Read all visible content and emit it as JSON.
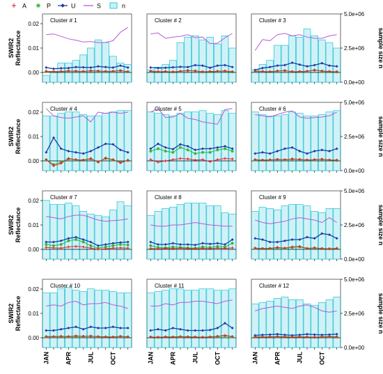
{
  "chart_data": {
    "type": "bar+line",
    "legend": {
      "placement": "top",
      "entries": [
        {
          "label": "A",
          "color": "#e8202a",
          "marker": "plus"
        },
        {
          "label": "P",
          "color": "#2fb82f",
          "marker": "star"
        },
        {
          "label": "U",
          "color": "#1f3aa8",
          "marker": "diamond"
        },
        {
          "label": "S",
          "color": "#b45ad6",
          "marker": "line"
        },
        {
          "label": "n",
          "color": "#36c8d8",
          "marker": "box"
        }
      ]
    },
    "y_left_label": "SWIR2 Reflectance",
    "y_right_label": "sample size n",
    "y_left_ticks": [
      "0.00",
      "0.01",
      "0.02"
    ],
    "y_right_ticks": [
      "0.0e+00",
      "2.5e+06",
      "5.0e+06"
    ],
    "y_left_range": [
      -0.004,
      0.024
    ],
    "y_right_range": [
      0,
      5000000
    ],
    "x_tick_labels": [
      "JAN",
      "APR",
      "JUL",
      "OCT"
    ],
    "grid": false,
    "panels": [
      {
        "title": "Cluster # 1",
        "n": [
          500000,
          800000,
          1400000,
          1400000,
          1600000,
          2000000,
          2500000,
          3100000,
          2900000,
          1900000,
          1400000,
          1300000
        ],
        "A": [
          0.0005,
          0.0003,
          0.0004,
          0.0006,
          0.0005,
          0.0004,
          0.0007,
          0.0006,
          0.0004,
          0.0005,
          0.0008,
          0.0003
        ],
        "P": [
          0.0004,
          0.0003,
          0.0003,
          0.0005,
          0.0005,
          0.0004,
          0.0006,
          0.0005,
          0.0004,
          0.0004,
          0.0007,
          0.0003
        ],
        "U": [
          0.002,
          0.0015,
          0.0017,
          0.0018,
          0.0022,
          0.0021,
          0.002,
          0.0025,
          0.0022,
          0.002,
          0.0028,
          0.002
        ],
        "S": [
          0.0155,
          0.0158,
          0.0148,
          0.0138,
          0.0132,
          0.0125,
          0.0127,
          0.0122,
          0.0123,
          0.013,
          0.0165,
          0.0185
        ]
      },
      {
        "title": "Cluster # 2",
        "n": [
          900000,
          1100000,
          1300000,
          1600000,
          2900000,
          3300000,
          3400000,
          3100000,
          3300000,
          2800000,
          3400000,
          2500000
        ],
        "A": [
          0.0005,
          0.0003,
          0.0004,
          0.0002,
          0.0005,
          0.0008,
          0.0006,
          0.0003,
          0.0004,
          0.0005,
          0.0006,
          0.0003
        ],
        "P": [
          0.0004,
          0.0003,
          0.0003,
          0.0002,
          0.0004,
          0.0007,
          0.0006,
          0.0002,
          0.0003,
          0.0004,
          0.0005,
          0.0002
        ],
        "U": [
          0.002,
          0.0018,
          0.0019,
          0.0021,
          0.0023,
          0.0022,
          0.003,
          0.0028,
          0.0019,
          0.0028,
          0.003,
          0.0022
        ],
        "S": [
          0.0158,
          0.0162,
          0.014,
          0.0145,
          0.0148,
          0.0155,
          0.0142,
          0.0145,
          0.0118,
          0.012,
          0.0142,
          0.016
        ]
      },
      {
        "title": "Cluster # 3",
        "n": [
          900000,
          1300000,
          1600000,
          2700000,
          2700000,
          3400000,
          3300000,
          3900000,
          3400000,
          3100000,
          2900000,
          2500000
        ],
        "A": [
          0.0005,
          0.0004,
          0.0003,
          0.0006,
          0.0008,
          0.0003,
          0.0004,
          0.0005,
          0.001,
          0.0006,
          0.0004,
          0.0003
        ],
        "P": [
          0.0004,
          0.0004,
          0.0003,
          0.0005,
          0.0007,
          0.0003,
          0.0003,
          0.0004,
          0.0009,
          0.0005,
          0.0003,
          0.0002
        ],
        "U": [
          0.001,
          0.0018,
          0.0022,
          0.0028,
          0.003,
          0.004,
          0.0032,
          0.0025,
          0.003,
          0.0038,
          0.0028,
          0.0025
        ],
        "S": [
          0.009,
          0.0135,
          0.013,
          0.0155,
          0.016,
          0.015,
          0.0155,
          0.0145,
          0.014,
          0.014,
          0.015,
          0.0155
        ]
      },
      {
        "title": "Cluster # 4",
        "n": [
          4000000,
          4000000,
          4200000,
          4300000,
          4300000,
          4100000,
          4000000,
          4000000,
          4200000,
          4300000,
          4400000,
          4400000
        ],
        "A": [
          0.0005,
          -0.002,
          -0.001,
          0.001,
          0.0005,
          0.0003,
          0.001,
          -0.0005,
          0.0012,
          0.0005,
          -0.0008,
          0.0002
        ],
        "P": [
          0.0004,
          -0.0015,
          -0.0005,
          0.0008,
          0.0004,
          0.0003,
          0.0008,
          -0.0004,
          0.001,
          0.0004,
          -0.0006,
          0.0002
        ],
        "U": [
          0.0035,
          0.0095,
          0.005,
          0.004,
          0.0035,
          0.003,
          0.004,
          0.0055,
          0.007,
          0.0068,
          0.0045,
          0.0035
        ],
        "S": [
          0.0215,
          0.0185,
          0.0178,
          0.0175,
          0.018,
          0.0185,
          0.016,
          0.02,
          0.0195,
          0.02,
          0.0195,
          0.02
        ]
      },
      {
        "title": "Cluster # 5",
        "n": [
          4300000,
          4200000,
          4100000,
          4000000,
          4200000,
          4300000,
          4300000,
          4400000,
          4200000,
          4100000,
          4400000,
          4200000
        ],
        "A": [
          0.0005,
          -0.0005,
          0.0,
          0.0005,
          0.001,
          0.0008,
          0.0003,
          0.0005,
          -0.0003,
          0.0005,
          0.001,
          0.0008
        ],
        "P": [
          0.004,
          0.005,
          0.004,
          0.0035,
          0.0055,
          0.0045,
          0.003,
          0.0035,
          0.0035,
          0.0045,
          0.005,
          0.004
        ],
        "U": [
          0.005,
          0.007,
          0.0055,
          0.0048,
          0.0068,
          0.006,
          0.0045,
          0.005,
          0.005,
          0.0055,
          0.006,
          0.005
        ],
        "S": [
          0.02,
          0.0215,
          0.0178,
          0.018,
          0.0195,
          0.0175,
          0.017,
          0.016,
          0.0155,
          0.015,
          0.021,
          0.0215
        ]
      },
      {
        "title": "Cluster # 6",
        "n": [
          4300000,
          4100000,
          4000000,
          4000000,
          4100000,
          4300000,
          4200000,
          4000000,
          4000000,
          4100000,
          4300000,
          4400000
        ],
        "A": [
          0.0005,
          0.0003,
          0.0004,
          0.0006,
          0.0005,
          0.0008,
          0.0006,
          0.0004,
          0.0005,
          0.0007,
          0.0004,
          0.0003
        ],
        "P": [
          0.0004,
          0.0003,
          0.0004,
          0.0005,
          0.0004,
          0.0007,
          0.0005,
          0.0003,
          0.0004,
          0.0006,
          0.0003,
          0.0002
        ],
        "U": [
          0.003,
          0.0035,
          0.003,
          0.004,
          0.005,
          0.0055,
          0.004,
          0.003,
          0.004,
          0.0045,
          0.004,
          0.005
        ],
        "S": [
          0.019,
          0.0185,
          0.018,
          0.019,
          0.02,
          0.0205,
          0.018,
          0.0175,
          0.0178,
          0.018,
          0.0185,
          0.02
        ]
      },
      {
        "title": "Cluster # 7",
        "n": [
          4300000,
          4000000,
          4000000,
          4100000,
          3900000,
          3500000,
          3300000,
          3200000,
          3100000,
          3600000,
          4200000,
          3900000
        ],
        "A": [
          0.0008,
          0.0006,
          0.0005,
          0.001,
          0.0012,
          0.001,
          0.0005,
          0.0,
          0.0002,
          0.0005,
          0.0006,
          0.0005
        ],
        "P": [
          0.002,
          0.0015,
          0.002,
          0.0035,
          0.004,
          0.003,
          0.0015,
          0.0005,
          0.001,
          0.0015,
          0.002,
          0.0018
        ],
        "U": [
          0.003,
          0.003,
          0.0035,
          0.0045,
          0.005,
          0.004,
          0.003,
          0.0015,
          0.002,
          0.0025,
          0.0028,
          0.003
        ],
        "S": [
          0.0135,
          0.013,
          0.0125,
          0.0135,
          0.014,
          0.014,
          0.013,
          0.012,
          0.0115,
          0.0118,
          0.012,
          0.0125
        ]
      },
      {
        "title": "Cluster # 8",
        "n": [
          3200000,
          3500000,
          3700000,
          3800000,
          4000000,
          4100000,
          4100000,
          4100000,
          3900000,
          3900000,
          3400000,
          3300000
        ],
        "A": [
          0.0003,
          0.0002,
          0.0004,
          0.0003,
          0.0005,
          0.0003,
          0.0002,
          0.0004,
          0.0003,
          0.0005,
          0.0004,
          0.0006
        ],
        "P": [
          0.0015,
          0.0008,
          0.0006,
          0.001,
          0.0008,
          0.0006,
          0.0005,
          0.001,
          0.0008,
          0.0012,
          0.001,
          0.0025
        ],
        "U": [
          0.003,
          0.002,
          0.002,
          0.0025,
          0.002,
          0.002,
          0.0018,
          0.0025,
          0.0022,
          0.0025,
          0.002,
          0.004
        ],
        "S": [
          0.01,
          0.0095,
          0.0095,
          0.01,
          0.01,
          0.0105,
          0.011,
          0.0105,
          0.01,
          0.0098,
          0.0095,
          0.0095
        ]
      },
      {
        "title": "Cluster # 9",
        "n": [
          3500000,
          3800000,
          3700000,
          3600000,
          3900000,
          4000000,
          4000000,
          3900000,
          3500000,
          3400000,
          3700000,
          3700000
        ],
        "A": [
          0.0005,
          0.0003,
          0.0004,
          0.0008,
          0.0005,
          0.001,
          0.0012,
          0.0004,
          0.0006,
          0.0003,
          0.0002,
          0.0004
        ],
        "P": [
          0.0004,
          0.0003,
          0.0003,
          0.0006,
          0.0004,
          0.0008,
          0.001,
          0.0003,
          0.0005,
          0.0003,
          0.0002,
          0.0003
        ],
        "U": [
          0.0045,
          0.004,
          0.003,
          0.003,
          0.0035,
          0.004,
          0.004,
          0.005,
          0.0045,
          0.0065,
          0.006,
          0.0045
        ],
        "S": [
          0.012,
          0.011,
          0.0105,
          0.011,
          0.0115,
          0.0125,
          0.013,
          0.0125,
          0.012,
          0.011,
          0.013,
          0.011
        ]
      },
      {
        "title": "Cluster # 10",
        "n": [
          4000000,
          4000000,
          4300000,
          4400000,
          4200000,
          4100000,
          4300000,
          4200000,
          4200000,
          4100000,
          4000000,
          4000000
        ],
        "A": [
          0.0005,
          0.0005,
          0.0006,
          0.0005,
          0.0008,
          0.0006,
          0.0007,
          0.0005,
          0.0004,
          0.0003,
          0.0006,
          0.0004
        ],
        "P": [
          0.0004,
          0.0004,
          0.0005,
          0.0004,
          0.0006,
          0.0005,
          0.0006,
          0.0004,
          0.0003,
          0.0003,
          0.0005,
          0.0003
        ],
        "U": [
          0.003,
          0.003,
          0.0035,
          0.004,
          0.0045,
          0.0035,
          0.0045,
          0.004,
          0.004,
          0.0045,
          0.004,
          0.004
        ],
        "S": [
          0.013,
          0.0135,
          0.013,
          0.0145,
          0.015,
          0.0135,
          0.014,
          0.014,
          0.0145,
          0.0135,
          0.013,
          0.012
        ]
      },
      {
        "title": "Cluster # 11",
        "n": [
          4000000,
          4100000,
          4200000,
          4300000,
          4300000,
          4200000,
          4200000,
          4300000,
          4300000,
          4200000,
          4200000,
          4300000
        ],
        "A": [
          0.0003,
          0.0002,
          0.0004,
          0.0003,
          0.0005,
          0.0004,
          0.0003,
          0.0002,
          0.0004,
          0.0006,
          0.001,
          0.0005
        ],
        "P": [
          0.0003,
          0.0002,
          0.0003,
          0.0003,
          0.0004,
          0.0003,
          0.0003,
          0.0002,
          0.0003,
          0.0005,
          0.0008,
          0.0004
        ],
        "U": [
          0.003,
          0.0035,
          0.003,
          0.004,
          0.0035,
          0.003,
          0.003,
          0.003,
          0.0032,
          0.004,
          0.006,
          0.004
        ],
        "S": [
          0.013,
          0.013,
          0.014,
          0.0135,
          0.0145,
          0.0145,
          0.015,
          0.015,
          0.0145,
          0.014,
          0.015,
          0.0155
        ]
      },
      {
        "title": "Cluster # 12",
        "n": [
          3200000,
          3300000,
          3400000,
          3600000,
          3700000,
          3500000,
          3500000,
          3200000,
          3100000,
          3300000,
          3500000,
          3700000
        ],
        "A": [
          0.0004,
          0.0003,
          0.0004,
          0.0005,
          0.0004,
          0.0003,
          0.0004,
          0.0003,
          0.0002,
          0.0004,
          0.0005,
          0.0004
        ],
        "P": [
          0.0003,
          0.0003,
          0.0003,
          0.0004,
          0.0003,
          0.0003,
          0.0003,
          0.0003,
          0.0002,
          0.0003,
          0.0004,
          0.0003
        ],
        "U": [
          0.001,
          0.0012,
          0.0013,
          0.0015,
          0.0012,
          0.001,
          0.0012,
          0.0015,
          0.0013,
          0.0012,
          0.0013,
          0.0015
        ],
        "S": [
          0.011,
          0.012,
          0.0125,
          0.013,
          0.0125,
          0.012,
          0.013,
          0.0135,
          0.0125,
          0.011,
          0.0105,
          0.011
        ]
      }
    ]
  }
}
